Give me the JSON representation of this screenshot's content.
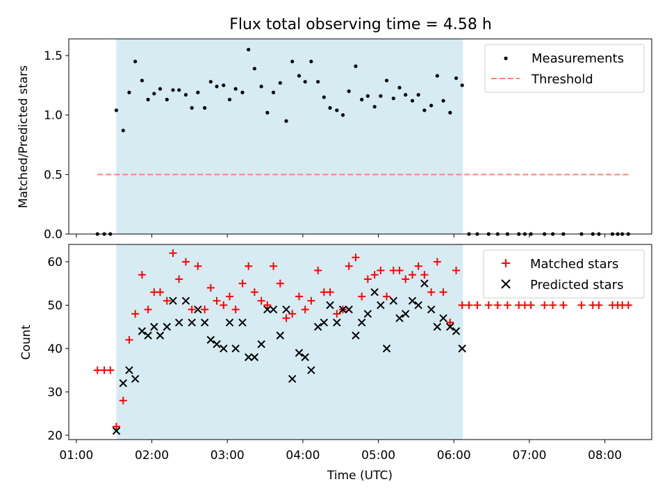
{
  "chart_data": {
    "title": "Flux total observing time = 4.58 h",
    "xlabel": "Time (UTC)",
    "x_unit": "hours (UTC)",
    "xlim": [
      0.9,
      8.62
    ],
    "x_ticks": [
      1,
      2,
      3,
      4,
      5,
      6,
      7,
      8
    ],
    "x_tick_labels": [
      "01:00",
      "02:00",
      "03:00",
      "04:00",
      "05:00",
      "06:00",
      "07:00",
      "08:00"
    ],
    "shaded_interval": [
      1.53,
      6.12
    ],
    "shade_color": "#add8e6",
    "panels": [
      {
        "name": "ratio",
        "type": "scatter",
        "ylabel": "Matched/Predicted stars",
        "ylim": [
          0,
          1.64
        ],
        "y_ticks": [
          0,
          0.5,
          1.0,
          1.5
        ],
        "y_tick_labels": [
          "0.0",
          "0.5",
          "1.0",
          "1.5"
        ],
        "legend_position": "upper right",
        "series": [
          {
            "name": "Measurements",
            "marker": "dot",
            "color": "#000000",
            "x": [
              1.28,
              1.37,
              1.45,
              1.53,
              1.62,
              1.7,
              1.78,
              1.87,
              1.95,
              2.03,
              2.11,
              2.2,
              2.28,
              2.36,
              2.45,
              2.53,
              2.61,
              2.7,
              2.78,
              2.86,
              2.95,
              3.03,
              3.11,
              3.2,
              3.28,
              3.36,
              3.45,
              3.53,
              3.61,
              3.7,
              3.78,
              3.86,
              3.95,
              4.03,
              4.11,
              4.2,
              4.28,
              4.36,
              4.45,
              4.53,
              4.61,
              4.7,
              4.78,
              4.86,
              4.95,
              5.03,
              5.11,
              5.2,
              5.28,
              5.36,
              5.45,
              5.53,
              5.61,
              5.7,
              5.78,
              5.86,
              5.95,
              6.03,
              6.11,
              6.2,
              6.31,
              6.46,
              6.58,
              6.71,
              6.86,
              6.94,
              7.02,
              7.2,
              7.31,
              7.45,
              7.69,
              7.84,
              7.92,
              8.1,
              8.17,
              8.23,
              8.31
            ],
            "y": [
              0,
              0,
              0,
              1.04,
              0.87,
              1.19,
              1.45,
              1.29,
              1.13,
              1.18,
              1.22,
              1.13,
              1.21,
              1.21,
              1.17,
              1.06,
              1.19,
              1.06,
              1.28,
              1.24,
              1.25,
              1.13,
              1.22,
              1.19,
              1.55,
              1.39,
              1.24,
              1.02,
              1.19,
              1.27,
              0.95,
              1.45,
              1.33,
              1.28,
              1.45,
              1.28,
              1.15,
              1.06,
              1.04,
              1.0,
              1.2,
              1.41,
              1.13,
              1.16,
              1.07,
              1.16,
              1.29,
              1.14,
              1.23,
              1.17,
              1.12,
              1.17,
              1.04,
              1.08,
              1.33,
              1.12,
              1.02,
              1.31,
              1.25,
              0,
              0,
              0,
              0,
              0,
              0,
              0,
              0,
              0,
              0,
              0,
              0,
              0,
              0,
              0,
              0,
              0,
              0
            ]
          },
          {
            "name": "Threshold",
            "type": "line",
            "style": "dashed",
            "color": "#ff7f7f",
            "x": [
              1.28,
              8.31
            ],
            "y": [
              0.5,
              0.5
            ]
          }
        ]
      },
      {
        "name": "counts",
        "type": "scatter",
        "ylabel": "Count",
        "ylim": [
          19,
          64
        ],
        "y_ticks": [
          20,
          30,
          40,
          50,
          60
        ],
        "y_tick_labels": [
          "20",
          "30",
          "40",
          "50",
          "60"
        ],
        "legend_position": "upper right",
        "series": [
          {
            "name": "Matched stars",
            "marker": "plus",
            "color": "#ff0000",
            "x": [
              1.28,
              1.37,
              1.45,
              1.53,
              1.62,
              1.7,
              1.78,
              1.87,
              1.95,
              2.03,
              2.11,
              2.2,
              2.28,
              2.36,
              2.45,
              2.53,
              2.61,
              2.7,
              2.78,
              2.86,
              2.95,
              3.03,
              3.11,
              3.2,
              3.28,
              3.36,
              3.45,
              3.53,
              3.61,
              3.7,
              3.78,
              3.86,
              3.95,
              4.03,
              4.11,
              4.2,
              4.28,
              4.36,
              4.45,
              4.53,
              4.61,
              4.7,
              4.78,
              4.86,
              4.95,
              5.03,
              5.11,
              5.2,
              5.28,
              5.36,
              5.45,
              5.53,
              5.61,
              5.7,
              5.78,
              5.86,
              5.95,
              6.03,
              6.11,
              6.2,
              6.31,
              6.46,
              6.58,
              6.71,
              6.86,
              6.94,
              7.02,
              7.2,
              7.31,
              7.45,
              7.69,
              7.84,
              7.92,
              8.1,
              8.17,
              8.23,
              8.31
            ],
            "y": [
              35,
              35,
              35,
              22,
              28,
              42,
              48,
              57,
              49,
              53,
              53,
              51,
              62,
              56,
              60,
              49,
              59,
              49,
              54,
              51,
              50,
              52,
              49,
              55,
              59,
              53,
              51,
              50,
              59,
              55,
              47,
              48,
              52,
              49,
              51,
              58,
              53,
              53,
              48,
              49,
              59,
              61,
              52,
              56,
              57,
              58,
              52,
              58,
              58,
              56,
              57,
              59,
              57,
              53,
              60,
              53,
              46,
              58,
              50,
              50,
              50,
              50,
              50,
              50,
              50,
              50,
              50,
              50,
              50,
              50,
              50,
              50,
              50,
              50,
              50,
              50,
              50
            ]
          },
          {
            "name": "Predicted stars",
            "marker": "x",
            "color": "#000000",
            "x": [
              1.53,
              1.62,
              1.7,
              1.78,
              1.87,
              1.95,
              2.03,
              2.11,
              2.2,
              2.28,
              2.36,
              2.45,
              2.53,
              2.61,
              2.7,
              2.78,
              2.86,
              2.95,
              3.03,
              3.11,
              3.2,
              3.28,
              3.36,
              3.45,
              3.53,
              3.61,
              3.7,
              3.78,
              3.86,
              3.95,
              4.03,
              4.11,
              4.2,
              4.28,
              4.36,
              4.45,
              4.53,
              4.61,
              4.7,
              4.78,
              4.86,
              4.95,
              5.03,
              5.11,
              5.2,
              5.28,
              5.36,
              5.45,
              5.53,
              5.61,
              5.7,
              5.78,
              5.86,
              5.95,
              6.03,
              6.11
            ],
            "y": [
              21,
              32,
              35,
              33,
              44,
              43,
              45,
              43,
              45,
              51,
              46,
              51,
              46,
              49,
              46,
              42,
              41,
              40,
              46,
              40,
              46,
              38,
              38,
              41,
              49,
              49,
              43,
              49,
              33,
              39,
              38,
              35,
              45,
              46,
              50,
              46,
              49,
              49,
              43,
              46,
              48,
              53,
              50,
              40,
              51,
              47,
              48,
              51,
              50,
              55,
              49,
              45,
              47,
              45,
              44,
              40
            ]
          }
        ]
      }
    ]
  }
}
